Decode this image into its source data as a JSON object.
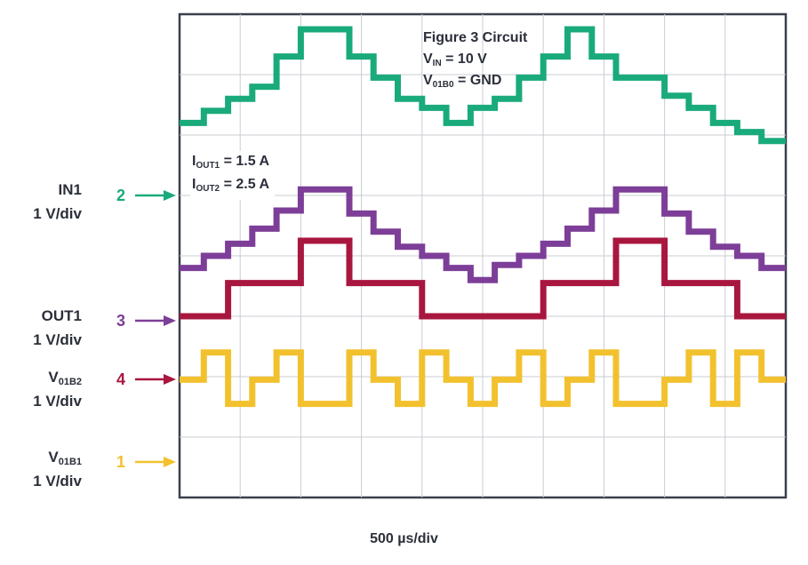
{
  "annotations": {
    "circuit": "Figure 3 Circuit",
    "vin_sym": "V",
    "vin_sub": "IN",
    "vin_val": "= 10 V",
    "v01b0_sym": "V",
    "v01b0_sub": "01B0",
    "v01b0_val": "= GND",
    "iout1_sym": "I",
    "iout1_sub": "OUT1",
    "iout1_val": "= 1.5 A",
    "iout2_sym": "I",
    "iout2_sub": "OUT2",
    "iout2_val": "= 2.5 A"
  },
  "channels": [
    {
      "number": "2",
      "name": "IN1",
      "name_sub": "",
      "scale": "1 V/div",
      "color": "#1aaa7c"
    },
    {
      "number": "3",
      "name": "OUT1",
      "name_sub": "",
      "scale": "1 V/div",
      "color": "#7d3e98"
    },
    {
      "number": "4",
      "name": "V",
      "name_sub": "01B2",
      "scale": "1 V/div",
      "color": "#a8173f"
    },
    {
      "number": "1",
      "name": "V",
      "name_sub": "01B1",
      "scale": "1 V/div",
      "color": "#f2c12e"
    }
  ],
  "timebase": "500 µs/div",
  "chart_data": {
    "type": "line",
    "x_unit": "div",
    "y_unit": "div",
    "xlim": [
      0,
      10
    ],
    "ylim": [
      -4,
      4
    ],
    "grid": true,
    "series": [
      {
        "name": "IN1",
        "color": "#1aaa7c",
        "x": [
          0,
          0.4,
          0.4,
          0.8,
          0.8,
          1.2,
          1.2,
          1.6,
          1.6,
          2.0,
          2.0,
          2.8,
          2.8,
          3.2,
          3.2,
          3.6,
          3.6,
          4.0,
          4.0,
          4.4,
          4.4,
          4.8,
          4.8,
          5.2,
          5.2,
          5.6,
          5.6,
          6.0,
          6.0,
          6.4,
          6.4,
          6.8,
          6.8,
          7.2,
          7.2,
          8.0,
          8.0,
          8.4,
          8.4,
          8.8,
          8.8,
          9.2,
          9.2,
          9.6,
          9.6,
          10
        ],
        "y": [
          2.2,
          2.2,
          2.4,
          2.4,
          2.6,
          2.6,
          2.8,
          2.8,
          3.3,
          3.3,
          3.75,
          3.75,
          3.3,
          3.3,
          2.95,
          2.95,
          2.6,
          2.6,
          2.45,
          2.45,
          2.2,
          2.2,
          2.45,
          2.45,
          2.6,
          2.6,
          2.95,
          2.95,
          3.3,
          3.3,
          3.75,
          3.75,
          3.3,
          3.3,
          2.95,
          2.95,
          2.65,
          2.65,
          2.45,
          2.45,
          2.2,
          2.2,
          2.05,
          2.05,
          1.9,
          1.9
        ]
      },
      {
        "name": "OUT1",
        "color": "#7d3e98",
        "x": [
          0,
          0.4,
          0.4,
          0.8,
          0.8,
          1.2,
          1.2,
          1.6,
          1.6,
          2.0,
          2.0,
          2.8,
          2.8,
          3.2,
          3.2,
          3.6,
          3.6,
          4.0,
          4.0,
          4.4,
          4.4,
          4.8,
          4.8,
          5.2,
          5.2,
          5.6,
          5.6,
          6.0,
          6.0,
          6.4,
          6.4,
          6.8,
          6.8,
          7.2,
          7.2,
          8.0,
          8.0,
          8.4,
          8.4,
          8.8,
          8.8,
          9.2,
          9.2,
          9.6,
          9.6,
          10
        ],
        "y": [
          -0.2,
          -0.2,
          0.0,
          0.0,
          0.2,
          0.2,
          0.45,
          0.45,
          0.75,
          0.75,
          1.1,
          1.1,
          0.7,
          0.7,
          0.4,
          0.4,
          0.15,
          0.15,
          0.0,
          0.0,
          -0.2,
          -0.2,
          -0.4,
          -0.4,
          -0.15,
          -0.15,
          0.0,
          0.0,
          0.2,
          0.2,
          0.45,
          0.45,
          0.75,
          0.75,
          1.1,
          1.1,
          0.7,
          0.7,
          0.4,
          0.4,
          0.15,
          0.15,
          0.0,
          0.0,
          -0.2,
          -0.2
        ]
      },
      {
        "name": "V01B2",
        "color": "#a8173f",
        "x": [
          0,
          0.8,
          0.8,
          2.0,
          2.0,
          2.8,
          2.8,
          4.0,
          4.0,
          6.0,
          6.0,
          7.2,
          7.2,
          8.0,
          8.0,
          9.2,
          9.2,
          10
        ],
        "y": [
          -1.0,
          -1.0,
          -0.45,
          -0.45,
          0.25,
          0.25,
          -0.45,
          -0.45,
          -1.0,
          -1.0,
          -0.45,
          -0.45,
          0.25,
          0.25,
          -0.45,
          -0.45,
          -1.0,
          -1.0
        ]
      },
      {
        "name": "V01B1",
        "color": "#f2c12e",
        "x": [
          0,
          0.4,
          0.4,
          0.8,
          0.8,
          1.2,
          1.2,
          1.6,
          1.6,
          2.0,
          2.0,
          2.8,
          2.8,
          3.2,
          3.2,
          3.6,
          3.6,
          4.0,
          4.0,
          4.4,
          4.4,
          4.8,
          4.8,
          5.2,
          5.2,
          5.6,
          5.6,
          6.0,
          6.0,
          6.4,
          6.4,
          6.8,
          6.8,
          7.2,
          7.2,
          8.0,
          8.0,
          8.4,
          8.4,
          8.8,
          8.8,
          9.2,
          9.2,
          9.6,
          9.6,
          10
        ],
        "y": [
          -2.05,
          -2.05,
          -1.6,
          -1.6,
          -2.45,
          -2.45,
          -2.05,
          -2.05,
          -1.6,
          -1.6,
          -2.45,
          -2.45,
          -1.6,
          -1.6,
          -2.05,
          -2.05,
          -2.45,
          -2.45,
          -1.6,
          -1.6,
          -2.05,
          -2.05,
          -2.45,
          -2.45,
          -2.05,
          -2.05,
          -1.6,
          -1.6,
          -2.45,
          -2.45,
          -2.05,
          -2.05,
          -1.6,
          -1.6,
          -2.45,
          -2.45,
          -2.05,
          -2.05,
          -1.6,
          -1.6,
          -2.45,
          -2.45,
          -1.6,
          -1.6,
          -2.05,
          -2.05
        ]
      }
    ]
  }
}
